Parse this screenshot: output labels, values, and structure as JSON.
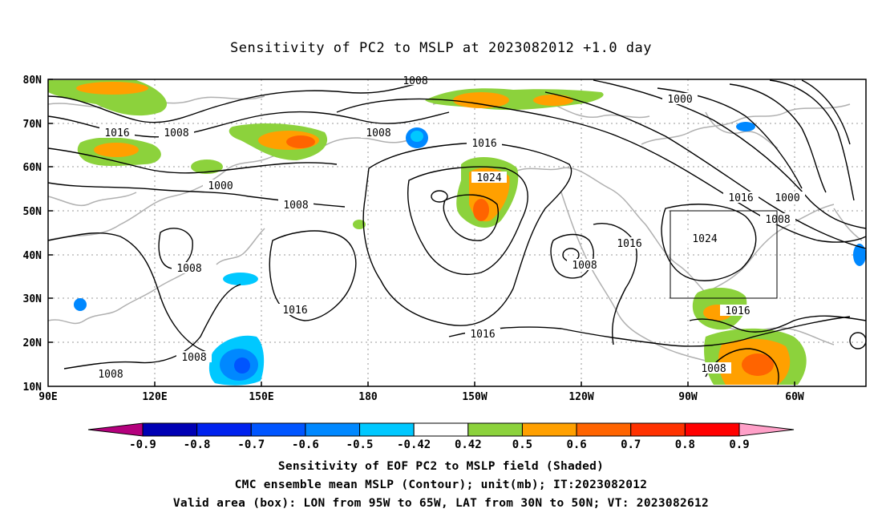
{
  "title": "Sensitivity of PC2 to MSLP at 2023082012 +1.0 day",
  "lat_labels": [
    "80N",
    "70N",
    "60N",
    "50N",
    "40N",
    "30N",
    "20N",
    "10N"
  ],
  "lon_labels": [
    "90E",
    "120E",
    "150E",
    "180",
    "150W",
    "120W",
    "90W",
    "60W"
  ],
  "contour_levels": [
    "1008",
    "1016",
    "1008",
    "1008",
    "1000",
    "1008",
    "1016",
    "1024",
    "1000",
    "1016",
    "1000",
    "1008",
    "1024",
    "1016",
    "1008",
    "1008",
    "1016",
    "1016",
    "1008",
    "1008",
    "1016",
    "1008"
  ],
  "colorbar": {
    "colors": [
      "#b4007d",
      "#0000b4",
      "#0022ee",
      "#0055ff",
      "#0088ff",
      "#00c8ff",
      "#ffffff",
      "#8cd23c",
      "#ffa000",
      "#ff6400",
      "#ff3200",
      "#ff0000",
      "#ffa0c8"
    ],
    "labels": [
      "-0.9",
      "-0.8",
      "-0.7",
      "-0.6",
      "-0.5",
      "-0.42",
      "0.42",
      "0.5",
      "0.6",
      "0.7",
      "0.8",
      "0.9"
    ]
  },
  "captions": {
    "line1": "Sensitivity of EOF PC2 to MSLP field (Shaded)",
    "line2": "CMC ensemble mean MSLP (Contour); unit(mb); IT:2023082012",
    "line3": "Valid area (box): LON from 95W to 65W, LAT from 30N to 50N; VT: 2023082612"
  }
}
